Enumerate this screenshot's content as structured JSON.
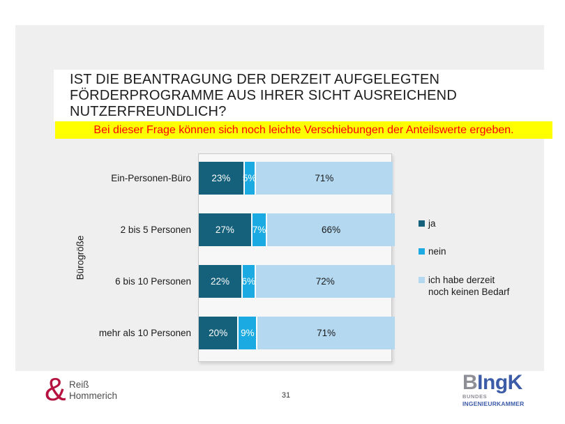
{
  "slide": {
    "title": "IST DIE BEANTRAGUNG DER DERZEIT AUFGELEGTEN FÖRDERPROGRAMME AUS IHRER SICHT AUSREICHEND NUTZERFREUNDLICH?",
    "notice": "Bei dieser Frage können sich noch leichte Verschiebungen der Anteilswerte ergeben.",
    "notice_background": "#ffff00",
    "notice_text_color": "#ff0000",
    "page_number": "31"
  },
  "chart_data": {
    "type": "bar",
    "orientation": "horizontal",
    "stacked": true,
    "grid": false,
    "categories": [
      "Ein-Personen-Büro",
      "2 bis 5 Personen",
      "6 bis 10 Personen",
      "mehr als 10 Personen"
    ],
    "series": [
      {
        "name": "ja",
        "values": [
          23,
          27,
          22,
          20
        ],
        "color": "#15607a",
        "label_color": "#ffffff",
        "legend_lines": [
          "ja"
        ]
      },
      {
        "name": "nein",
        "values": [
          5,
          7,
          6,
          9
        ],
        "color": "#1babe2",
        "label_color": "#ffffff",
        "legend_lines": [
          "nein"
        ]
      },
      {
        "name": "ich habe derzeit noch keinen Bedarf",
        "values": [
          71,
          66,
          72,
          71
        ],
        "color": "#b3d8f0",
        "label_color": "#1a1a1a",
        "legend_lines": [
          "ich habe derzeit",
          "noch keinen Bedarf"
        ]
      }
    ],
    "ylabel": "Bürogröße",
    "xlabel": "",
    "xlim": [
      0,
      100
    ],
    "value_label_format": "percent",
    "legend_position": "right"
  },
  "footer": {
    "left_logo": {
      "ampersand": "&",
      "ampersand_color": "#b5123f",
      "line1": "Reiß",
      "line2": "Hommerich"
    },
    "right_logo": {
      "gray_part": "B",
      "blue_part": "IngK",
      "sub_line1": "BUNDES",
      "sub_line2": "INGENIEURKAMMER",
      "gray_color": "#8e8e96",
      "blue_color": "#3c5ca8"
    }
  }
}
